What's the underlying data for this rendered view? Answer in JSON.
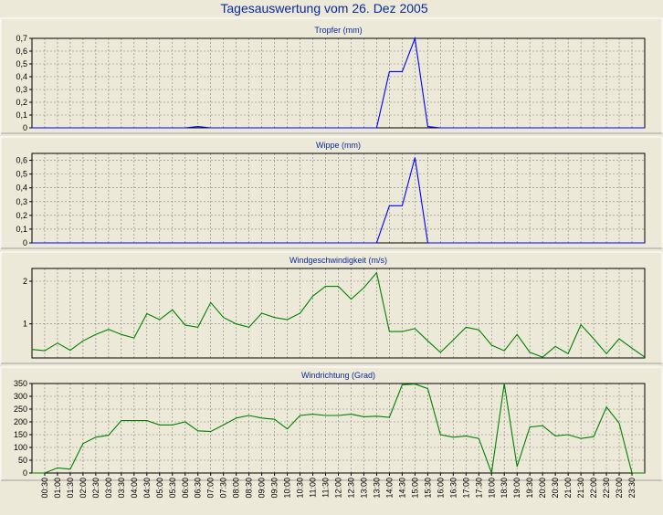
{
  "title": "Tagesauswertung vom 26. Dez 2005",
  "x_ticks": [
    "00:30",
    "01:00",
    "01:30",
    "02:00",
    "02:30",
    "03:00",
    "03:30",
    "04:00",
    "04:30",
    "05:00",
    "05:30",
    "06:00",
    "06:30",
    "07:00",
    "07:30",
    "08:00",
    "08:30",
    "09:00",
    "09:30",
    "10:00",
    "10:30",
    "11:00",
    "11:30",
    "12:00",
    "12:30",
    "13:00",
    "13:30",
    "14:00",
    "14:30",
    "15:00",
    "15:30",
    "16:00",
    "16:30",
    "17:00",
    "17:30",
    "18:00",
    "18:30",
    "19:00",
    "19:30",
    "20:00",
    "20:30",
    "21:00",
    "21:30",
    "22:00",
    "22:30",
    "23:00",
    "23:30"
  ],
  "chart_data": [
    {
      "type": "line",
      "title": "Tropfer (mm)",
      "color": "#0000ff",
      "ylim": [
        0,
        0.7
      ],
      "yticks": [
        0,
        0.1,
        0.2,
        0.3,
        0.4,
        0.5,
        0.6,
        0.7
      ],
      "ytick_labels": [
        "0",
        "0,1",
        "0,2",
        "0,3",
        "0,4",
        "0,5",
        "0,6",
        "0,7"
      ],
      "x": [
        "00:00",
        "00:30",
        "01:00",
        "01:30",
        "02:00",
        "02:30",
        "03:00",
        "03:30",
        "04:00",
        "04:30",
        "05:00",
        "05:30",
        "06:00",
        "06:30",
        "07:00",
        "07:30",
        "08:00",
        "08:30",
        "09:00",
        "09:30",
        "10:00",
        "10:30",
        "11:00",
        "11:30",
        "12:00",
        "12:30",
        "13:00",
        "13:30",
        "14:00",
        "14:30",
        "15:00",
        "15:30",
        "16:00",
        "16:30",
        "17:00",
        "17:30",
        "18:00",
        "18:30",
        "19:00",
        "19:30",
        "20:00",
        "20:30",
        "21:00",
        "21:30",
        "22:00",
        "22:30",
        "23:00",
        "23:30",
        "24:00"
      ],
      "values": [
        0,
        0,
        0,
        0,
        0,
        0,
        0,
        0,
        0,
        0,
        0,
        0,
        0,
        0.01,
        0,
        0,
        0,
        0,
        0,
        0,
        0,
        0,
        0,
        0,
        0,
        0,
        0,
        0,
        0.44,
        0.44,
        0.7,
        0.01,
        0,
        0,
        0,
        0,
        0,
        0,
        0,
        0,
        0,
        0,
        0,
        0,
        0,
        0,
        0,
        0,
        0
      ]
    },
    {
      "type": "line",
      "title": "Wippe (mm)",
      "color": "#0000ff",
      "ylim": [
        0,
        0.65
      ],
      "yticks": [
        0,
        0.1,
        0.2,
        0.3,
        0.4,
        0.5,
        0.6
      ],
      "ytick_labels": [
        "0",
        "0,1",
        "0,2",
        "0,3",
        "0,4",
        "0,5",
        "0,6"
      ],
      "x": [
        "00:00",
        "00:30",
        "01:00",
        "01:30",
        "02:00",
        "02:30",
        "03:00",
        "03:30",
        "04:00",
        "04:30",
        "05:00",
        "05:30",
        "06:00",
        "06:30",
        "07:00",
        "07:30",
        "08:00",
        "08:30",
        "09:00",
        "09:30",
        "10:00",
        "10:30",
        "11:00",
        "11:30",
        "12:00",
        "12:30",
        "13:00",
        "13:30",
        "14:00",
        "14:30",
        "15:00",
        "15:30",
        "16:00",
        "16:30",
        "17:00",
        "17:30",
        "18:00",
        "18:30",
        "19:00",
        "19:30",
        "20:00",
        "20:30",
        "21:00",
        "21:30",
        "22:00",
        "22:30",
        "23:00",
        "23:30",
        "24:00"
      ],
      "values": [
        0,
        0,
        0,
        0,
        0,
        0,
        0,
        0,
        0,
        0,
        0,
        0,
        0,
        0,
        0,
        0,
        0,
        0,
        0,
        0,
        0,
        0,
        0,
        0,
        0,
        0,
        0,
        0,
        0.27,
        0.27,
        0.62,
        0,
        0,
        0,
        0,
        0,
        0,
        0,
        0,
        0,
        0,
        0,
        0,
        0,
        0,
        0,
        0,
        0,
        0
      ]
    },
    {
      "type": "line",
      "title": "Windgeschwindigkeit (m/s)",
      "color": "#008000",
      "ylim": [
        0.2,
        2.3
      ],
      "yticks": [
        1,
        2
      ],
      "ytick_labels": [
        "1",
        "2"
      ],
      "x": [
        "00:00",
        "00:30",
        "01:00",
        "01:30",
        "02:00",
        "02:30",
        "03:00",
        "03:30",
        "04:00",
        "04:30",
        "05:00",
        "05:30",
        "06:00",
        "06:30",
        "07:00",
        "07:30",
        "08:00",
        "08:30",
        "09:00",
        "09:30",
        "10:00",
        "10:30",
        "11:00",
        "11:30",
        "12:00",
        "12:30",
        "13:00",
        "13:30",
        "14:00",
        "14:30",
        "15:00",
        "15:30",
        "16:00",
        "16:30",
        "17:00",
        "17:30",
        "18:00",
        "18:30",
        "19:00",
        "19:30",
        "20:00",
        "20:30",
        "21:00",
        "21:30",
        "22:00",
        "22:30",
        "23:00",
        "23:30",
        "24:00"
      ],
      "values": [
        0.4,
        0.37,
        0.55,
        0.38,
        0.6,
        0.75,
        0.87,
        0.75,
        0.67,
        1.24,
        1.1,
        1.33,
        0.97,
        0.92,
        1.5,
        1.15,
        1.0,
        0.92,
        1.25,
        1.15,
        1.1,
        1.25,
        1.65,
        1.88,
        1.88,
        1.58,
        1.85,
        2.2,
        0.82,
        0.82,
        0.89,
        0.6,
        0.33,
        0.62,
        0.92,
        0.86,
        0.5,
        0.37,
        0.75,
        0.33,
        0.22,
        0.47,
        0.3,
        0.98,
        0.65,
        0.3,
        0.65,
        0.43,
        0.22
      ]
    },
    {
      "type": "line",
      "title": "Windrichtung (Grad)",
      "color": "#008000",
      "ylim": [
        0,
        350
      ],
      "yticks": [
        0,
        50,
        100,
        150,
        200,
        250,
        300,
        350
      ],
      "ytick_labels": [
        "0",
        "50",
        "100",
        "150",
        "200",
        "250",
        "300",
        "350"
      ],
      "x": [
        "00:00",
        "00:30",
        "01:00",
        "01:30",
        "02:00",
        "02:30",
        "03:00",
        "03:30",
        "04:00",
        "04:30",
        "05:00",
        "05:30",
        "06:00",
        "06:30",
        "07:00",
        "07:30",
        "08:00",
        "08:30",
        "09:00",
        "09:30",
        "10:00",
        "10:30",
        "11:00",
        "11:30",
        "12:00",
        "12:30",
        "13:00",
        "13:30",
        "14:00",
        "14:30",
        "15:00",
        "15:30",
        "16:00",
        "16:30",
        "17:00",
        "17:30",
        "18:00",
        "18:30",
        "19:00",
        "19:30",
        "20:00",
        "20:30",
        "21:00",
        "21:30",
        "22:00",
        "22:30",
        "23:00",
        "23:30",
        "24:00"
      ],
      "values": [
        0,
        0,
        20,
        15,
        115,
        140,
        148,
        205,
        205,
        205,
        188,
        188,
        200,
        165,
        162,
        188,
        215,
        225,
        215,
        210,
        172,
        225,
        230,
        225,
        225,
        230,
        220,
        222,
        218,
        345,
        348,
        330,
        150,
        140,
        145,
        135,
        0,
        350,
        25,
        180,
        185,
        145,
        150,
        135,
        142,
        258,
        195,
        0,
        0
      ]
    }
  ]
}
